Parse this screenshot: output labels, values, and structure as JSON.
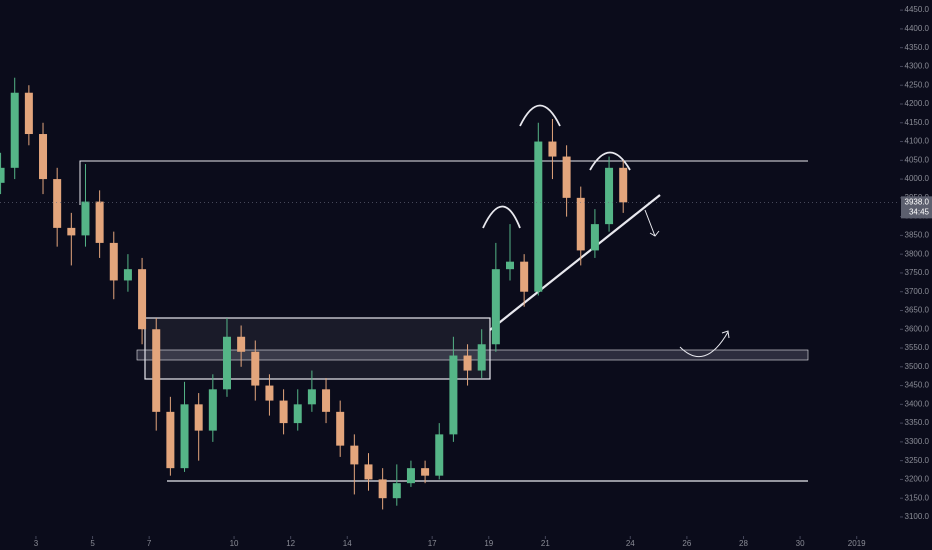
{
  "chart_data": {
    "type": "candlestick",
    "x": [
      -1.25,
      -0.75,
      -0.25,
      0.25,
      0.75,
      1.25,
      1.75,
      2.25,
      2.75,
      3.25,
      3.75,
      4.25,
      4.75,
      5.25,
      5.75,
      6.25,
      6.75,
      7.25,
      7.75,
      8.25,
      8.75,
      9.25,
      9.75,
      10.25,
      10.75,
      11.25,
      11.75,
      12.25,
      12.75,
      13.25,
      13.75,
      14.25,
      14.75,
      15.25,
      15.75,
      16.25,
      16.75,
      17.25,
      17.75,
      18.25,
      18.75,
      19.25,
      19.75,
      20.25,
      20.75
    ],
    "open": [
      3990,
      4030,
      4230,
      4120,
      4000,
      3870,
      3850,
      3940,
      3830,
      3730,
      3760,
      3600,
      3380,
      3230,
      3400,
      3330,
      3440,
      3580,
      3540,
      3450,
      3410,
      3350,
      3400,
      3440,
      3380,
      3290,
      3240,
      3200,
      3150,
      3190,
      3230,
      3210,
      3320,
      3530,
      3490,
      3560,
      3760,
      3780,
      3700,
      4100,
      4060,
      3950,
      3810,
      3880,
      4030
    ],
    "high": [
      4070,
      4270,
      4250,
      4150,
      4030,
      3910,
      4040,
      3970,
      3860,
      3800,
      3790,
      3630,
      3420,
      3460,
      3430,
      3480,
      3630,
      3610,
      3570,
      3480,
      3440,
      3440,
      3490,
      3470,
      3410,
      3320,
      3270,
      3230,
      3240,
      3250,
      3250,
      3350,
      3580,
      3560,
      3600,
      3830,
      3880,
      3800,
      4150,
      4160,
      4090,
      3980,
      3920,
      4060,
      4050
    ],
    "low": [
      3960,
      4000,
      4090,
      3960,
      3820,
      3770,
      3820,
      3790,
      3680,
      3700,
      3560,
      3330,
      3210,
      3220,
      3250,
      3300,
      3420,
      3500,
      3410,
      3370,
      3320,
      3330,
      3380,
      3350,
      3260,
      3160,
      3170,
      3120,
      3130,
      3180,
      3190,
      3200,
      3300,
      3450,
      3470,
      3540,
      3730,
      3660,
      3690,
      4000,
      3900,
      3770,
      3790,
      3860,
      3910
    ],
    "close": [
      4030,
      4230,
      4120,
      4000,
      3870,
      3850,
      3940,
      3830,
      3730,
      3760,
      3600,
      3380,
      3230,
      3400,
      3330,
      3440,
      3580,
      3540,
      3450,
      3410,
      3350,
      3400,
      3440,
      3380,
      3290,
      3240,
      3200,
      3150,
      3190,
      3230,
      3210,
      3320,
      3530,
      3490,
      3560,
      3760,
      3780,
      3700,
      4100,
      4060,
      3950,
      3810,
      3880,
      4030,
      3938
    ],
    "up_color": "#55b587",
    "down_color": "#e3a57c",
    "xlim": [
      -1.27,
      30.53
    ],
    "xticks": [
      {
        "value": 0,
        "label": "3"
      },
      {
        "value": 2,
        "label": "5"
      },
      {
        "value": 4,
        "label": "7"
      },
      {
        "value": 7,
        "label": "10"
      },
      {
        "value": 9,
        "label": "12"
      },
      {
        "value": 11,
        "label": "14"
      },
      {
        "value": 14,
        "label": "17"
      },
      {
        "value": 16,
        "label": "19"
      },
      {
        "value": 18,
        "label": "21"
      },
      {
        "value": 21,
        "label": "24"
      },
      {
        "value": 23,
        "label": "26"
      },
      {
        "value": 25,
        "label": "28"
      },
      {
        "value": 27,
        "label": "30"
      },
      {
        "value": 29,
        "label": "2019"
      }
    ],
    "ylim": [
      3012,
      4477
    ],
    "yticks": [
      {
        "value": 3100,
        "label": "3100.0"
      },
      {
        "value": 3150,
        "label": "3150.0"
      },
      {
        "value": 3200,
        "label": "3200.0"
      },
      {
        "value": 3250,
        "label": "3250.0"
      },
      {
        "value": 3300,
        "label": "3300.0"
      },
      {
        "value": 3350,
        "label": "3350.0"
      },
      {
        "value": 3400,
        "label": "3400.0"
      },
      {
        "value": 3450,
        "label": "3450.0"
      },
      {
        "value": 3500,
        "label": "3500.0"
      },
      {
        "value": 3550,
        "label": "3550.0"
      },
      {
        "value": 3600,
        "label": "3600.0"
      },
      {
        "value": 3650,
        "label": "3650.0"
      },
      {
        "value": 3700,
        "label": "3700.0"
      },
      {
        "value": 3750,
        "label": "3750.0"
      },
      {
        "value": 3800,
        "label": "3800.0"
      },
      {
        "value": 3850,
        "label": "3850.0"
      },
      {
        "value": 3900,
        "label": "3900.0"
      },
      {
        "value": 3950,
        "label": "3950.0"
      },
      {
        "value": 4000,
        "label": "4000.0"
      },
      {
        "value": 4050,
        "label": "4050.0"
      },
      {
        "value": 4100,
        "label": "4100.0"
      },
      {
        "value": 4150,
        "label": "4150.0"
      },
      {
        "value": 4200,
        "label": "4200.0"
      },
      {
        "value": 4250,
        "label": "4250.0"
      },
      {
        "value": 4300,
        "label": "4300.0"
      },
      {
        "value": 4350,
        "label": "4350.0"
      },
      {
        "value": 4400,
        "label": "4400.0"
      },
      {
        "value": 4450,
        "label": "4450.0"
      }
    ],
    "last_price": {
      "value": 3938,
      "label": "3938.0"
    },
    "countdown": "34:45"
  }
}
